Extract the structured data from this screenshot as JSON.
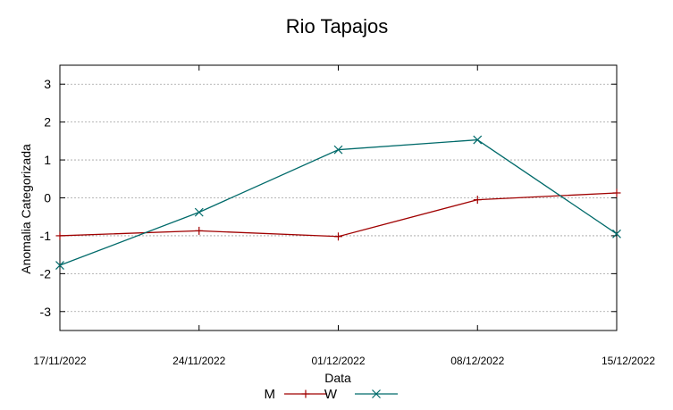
{
  "chart_data": {
    "type": "line",
    "title": "Rio Tapajos",
    "xlabel": "Data",
    "ylabel": "Anomalia Categorizada",
    "x": [
      "17/11/2022",
      "24/11/2022",
      "01/12/2022",
      "08/12/2022",
      "15/12/2022"
    ],
    "ylim": [
      -3.5,
      3.5
    ],
    "yticks": [
      -3,
      -2,
      -1,
      0,
      1,
      2,
      3
    ],
    "grid": true,
    "legend_position": "bottom",
    "series": [
      {
        "name": "M",
        "values": [
          -1.0,
          -0.87,
          -1.02,
          -0.05,
          0.13
        ],
        "color": "#a00000",
        "marker": "plus"
      },
      {
        "name": "W",
        "values": [
          -1.78,
          -0.38,
          1.27,
          1.53,
          -0.95
        ],
        "color": "#006a6a",
        "marker": "cross"
      }
    ]
  }
}
